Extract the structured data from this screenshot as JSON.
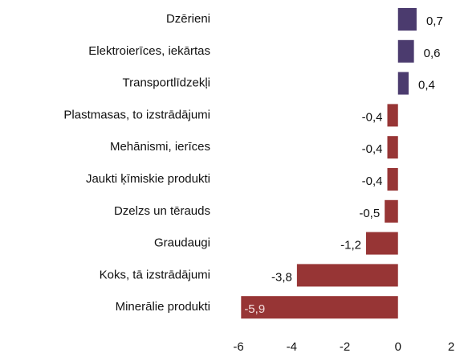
{
  "chart_data": {
    "type": "bar",
    "orientation": "horizontal",
    "categories": [
      "Dzērieni",
      "Elektroierīces, iekārtas",
      "Transportlīdzekļi",
      "Plastmasas, to izstrādājumi",
      "Mehānismi, ierīces",
      "Jaukti ķīmiskie produkti",
      "Dzelzs un tērauds",
      "Graudaugi",
      "Koks, tā izstrādājumi",
      "Minerālie produkti"
    ],
    "values": [
      0.7,
      0.6,
      0.4,
      -0.4,
      -0.4,
      -0.4,
      -0.5,
      -1.2,
      -3.8,
      -5.9
    ],
    "value_labels": [
      "0,7",
      "0,6",
      "0,4",
      "-0,4",
      "-0,4",
      "-0,4",
      "-0,5",
      "-1,2",
      "-3,8",
      "-5,9"
    ],
    "colors": [
      "#4b3b6e",
      "#4b3b6e",
      "#4b3b6e",
      "#973535",
      "#973535",
      "#973535",
      "#973535",
      "#973535",
      "#973535",
      "#973535"
    ],
    "xlim": [
      -6,
      2
    ],
    "xticks": [
      -6,
      -4,
      -2,
      0,
      2
    ],
    "grid": false
  }
}
